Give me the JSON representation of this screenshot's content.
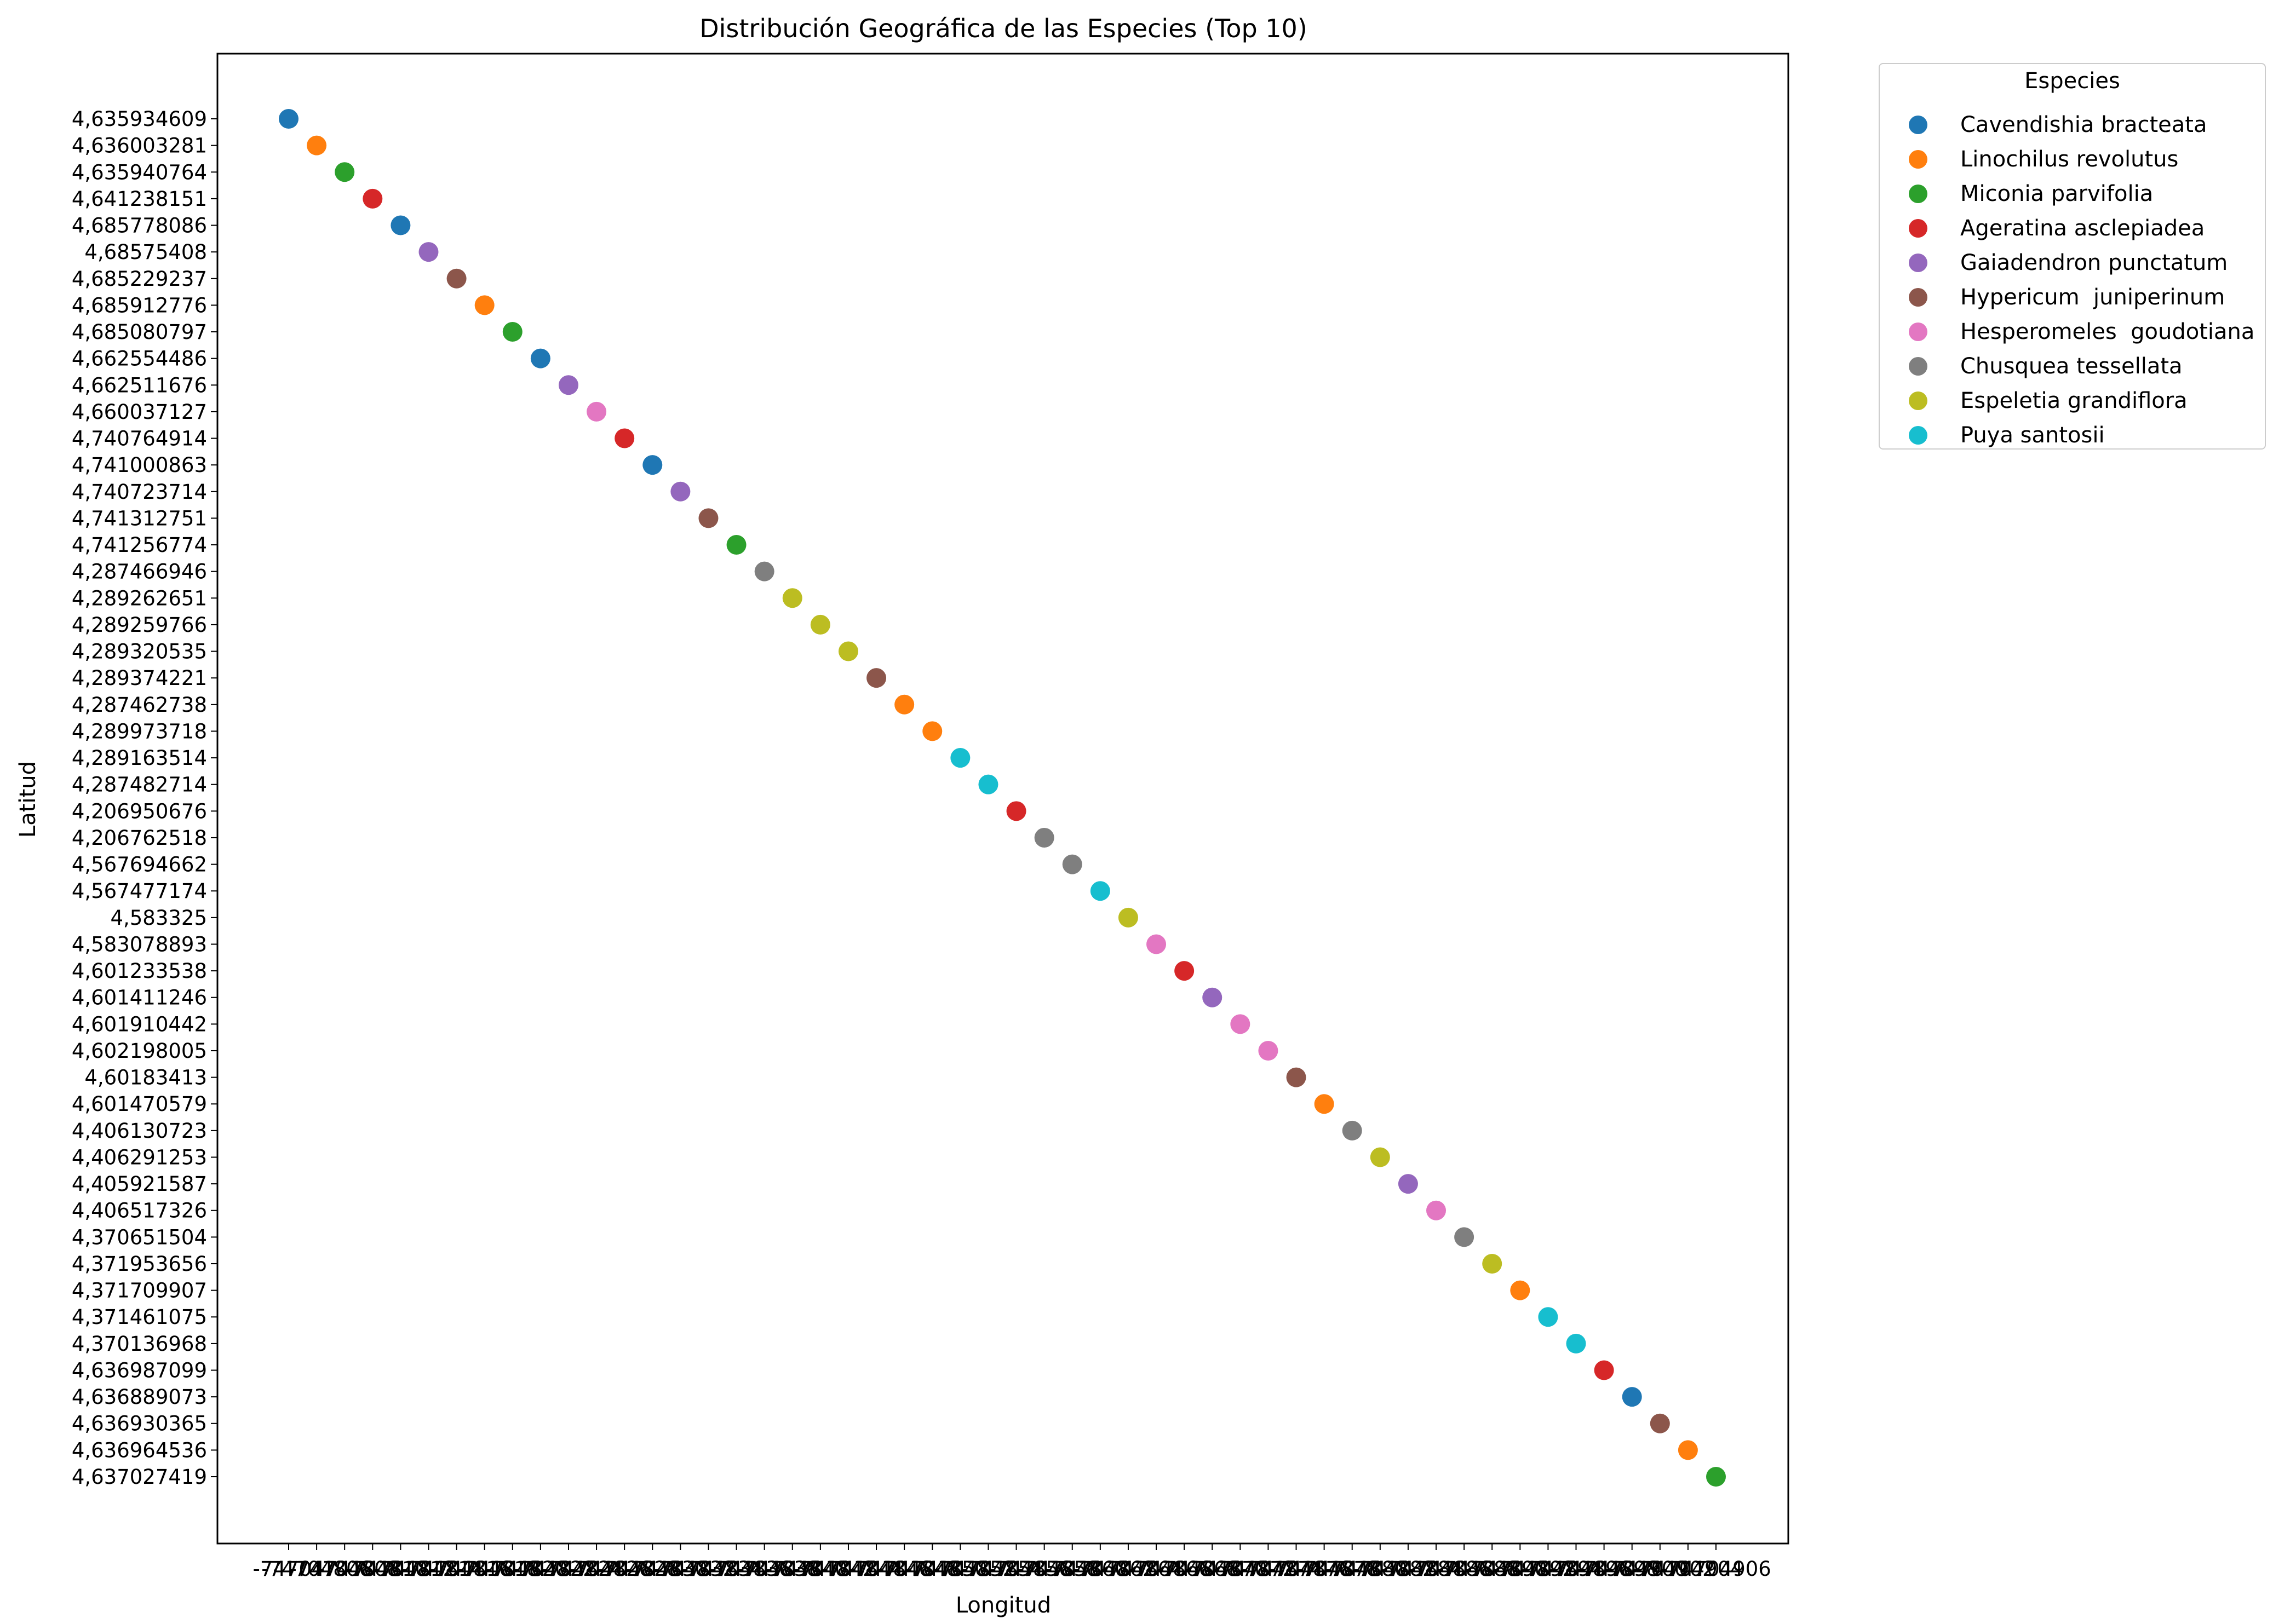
{
  "chart_data": {
    "type": "scatter",
    "title": "Distribución Geográfica de las Especies (Top 10)",
    "xlabel": "Longitud",
    "ylabel": "Latitud",
    "legend_title": "Especies",
    "legend_position": "outside-upper-right",
    "grid": false,
    "x_tick_labels": [
      "-74704",
      "-74704806",
      "-74704808",
      "-74704810",
      "-74704812",
      "-74704814",
      "-74704816",
      "-74704818",
      "-74704820",
      "-74704822",
      "-74704824",
      "-74704826",
      "-74704828",
      "-74704830",
      "-74704832",
      "-74704834",
      "-74704836",
      "-74704838",
      "-74704840",
      "-74704842",
      "-74704844",
      "-74704846",
      "-74704848",
      "-74704850",
      "-74704852",
      "-74704854",
      "-74704856",
      "-74704858",
      "-74704860",
      "-74704862",
      "-74704864",
      "-74704866",
      "-74704868",
      "-74704870",
      "-74704872",
      "-74704874",
      "-74704876",
      "-74704878",
      "-74704880",
      "-74704882",
      "-74704884",
      "-74704886",
      "-74704888",
      "-74704890",
      "-74704892",
      "-74704894",
      "-74704896",
      "-74704898",
      "-74704900",
      "-74704902",
      "-74704904",
      "-74704906"
    ],
    "y_tick_labels": [
      "4,635934609",
      "4,636003281",
      "4,635940764",
      "4,641238151",
      "4,685778086",
      "4,68575408",
      "4,685229237",
      "4,685912776",
      "4,685080797",
      "4,662554486",
      "4,662511676",
      "4,660037127",
      "4,740764914",
      "4,741000863",
      "4,740723714",
      "4,741312751",
      "4,741256774",
      "4,287466946",
      "4,289262651",
      "4,289259766",
      "4,289320535",
      "4,289374221",
      "4,287462738",
      "4,289973718",
      "4,289163514",
      "4,287482714",
      "4,206950676",
      "4,206762518",
      "4,567694662",
      "4,567477174",
      "4,583325",
      "4,583078893",
      "4,601233538",
      "4,601411246",
      "4,601910442",
      "4,602198005",
      "4,60183413",
      "4,601470579",
      "4,406130723",
      "4,406291253",
      "4,405921587",
      "4,406517326",
      "4,370651504",
      "4,371953656",
      "4,371709907",
      "4,371461075",
      "4,370136968",
      "4,636987099",
      "4,636889073",
      "4,636930365",
      "4,636964536",
      "4,637027419"
    ],
    "series": [
      {
        "name": "Cavendishia bracteata",
        "color": "#1f77b4",
        "point_index": [
          0,
          4,
          9,
          13,
          48
        ]
      },
      {
        "name": "Linochilus revolutus",
        "color": "#ff7f0e",
        "point_index": [
          1,
          7,
          22,
          23,
          37,
          44,
          50
        ]
      },
      {
        "name": "Miconia parvifolia",
        "color": "#2ca02c",
        "point_index": [
          2,
          8,
          16,
          51
        ]
      },
      {
        "name": "Ageratina asclepiadea",
        "color": "#d62728",
        "point_index": [
          3,
          12,
          26,
          32,
          47
        ]
      },
      {
        "name": "Gaiadendron punctatum",
        "color": "#9467bd",
        "point_index": [
          5,
          10,
          14,
          33,
          40
        ]
      },
      {
        "name": "Hypericum  juniperinum",
        "color": "#8c564b",
        "point_index": [
          6,
          15,
          21,
          36,
          49
        ]
      },
      {
        "name": "Hesperomeles  goudotiana",
        "color": "#e377c2",
        "point_index": [
          11,
          31,
          34,
          35,
          41
        ]
      },
      {
        "name": "Chusquea tessellata",
        "color": "#7f7f7f",
        "point_index": [
          17,
          27,
          28,
          38,
          42
        ]
      },
      {
        "name": "Espeletia grandiflora",
        "color": "#bcbd22",
        "point_index": [
          18,
          19,
          20,
          30,
          39,
          43
        ]
      },
      {
        "name": "Puya santosii",
        "color": "#17becf",
        "point_index": [
          24,
          25,
          29,
          45,
          46
        ]
      }
    ]
  }
}
